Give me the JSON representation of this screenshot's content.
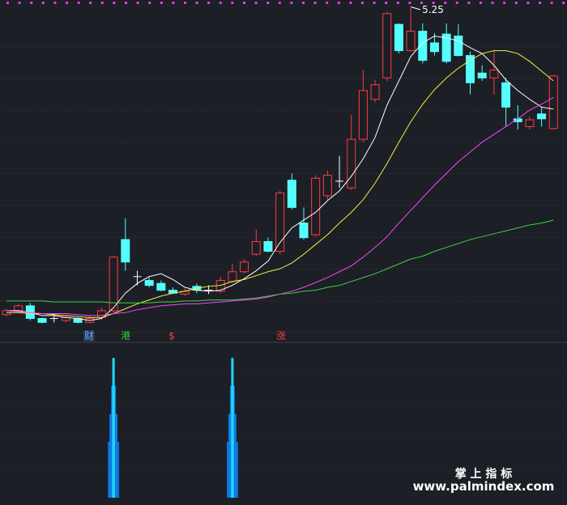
{
  "chart_data": {
    "type": "candlestick",
    "open": [
      2.09,
      2.13,
      2.18,
      2.05,
      2.05,
      2.03,
      2.05,
      2.01,
      2.06,
      2.13,
      2.86,
      2.48,
      2.44,
      2.41,
      2.34,
      2.3,
      2.38,
      2.34,
      2.33,
      2.43,
      2.53,
      2.71,
      2.84,
      2.74,
      3.47,
      3.03,
      2.91,
      3.31,
      3.46,
      3.39,
      3.89,
      4.3,
      4.52,
      5.07,
      4.8,
      5.0,
      4.88,
      4.97,
      4.95,
      4.75,
      4.57,
      4.52,
      4.47,
      4.1,
      4.02,
      4.15,
      4.0
    ],
    "high": [
      2.15,
      2.2,
      2.21,
      2.06,
      2.1,
      2.08,
      2.06,
      2.08,
      2.16,
      2.69,
      3.08,
      2.54,
      2.47,
      2.44,
      2.37,
      2.36,
      2.41,
      2.39,
      2.48,
      2.61,
      2.66,
      2.96,
      2.88,
      3.36,
      3.54,
      3.19,
      3.52,
      3.57,
      3.72,
      4.14,
      4.6,
      4.5,
      5.2,
      5.08,
      5.25,
      5.08,
      4.98,
      5.08,
      5.07,
      4.79,
      4.65,
      4.8,
      4.52,
      4.24,
      4.12,
      4.22,
      4.55
    ],
    "low": [
      2.07,
      2.11,
      2.03,
      2.0,
      2.01,
      2.01,
      2.0,
      2.0,
      2.04,
      2.11,
      2.54,
      2.39,
      2.37,
      2.33,
      2.3,
      2.28,
      2.31,
      2.3,
      2.31,
      2.41,
      2.51,
      2.69,
      2.73,
      2.71,
      3.17,
      2.86,
      2.89,
      3.27,
      3.39,
      3.37,
      3.86,
      4.27,
      4.49,
      4.77,
      4.79,
      4.67,
      4.75,
      4.67,
      4.74,
      4.35,
      4.49,
      4.35,
      4.02,
      3.99,
      3.99,
      4.02,
      3.99
    ],
    "close": [
      2.13,
      2.18,
      2.05,
      2.01,
      2.05,
      2.06,
      2.01,
      2.05,
      2.13,
      2.68,
      2.63,
      2.48,
      2.39,
      2.34,
      2.31,
      2.33,
      2.34,
      2.34,
      2.44,
      2.53,
      2.63,
      2.84,
      2.74,
      3.34,
      3.19,
      2.88,
      3.49,
      3.52,
      3.46,
      3.89,
      4.39,
      4.45,
      5.18,
      4.8,
      5.0,
      4.7,
      4.79,
      4.69,
      4.75,
      4.47,
      4.52,
      4.6,
      4.22,
      4.07,
      4.09,
      4.1,
      4.54
    ],
    "up_color": "#ff3c3c",
    "down_color": "#54ffff",
    "series": [
      {
        "color": "#ffffff",
        "values": [
          2.13,
          2.13,
          2.11,
          2.08,
          2.08,
          2.06,
          2.05,
          2.03,
          2.05,
          2.16,
          2.31,
          2.41,
          2.48,
          2.51,
          2.45,
          2.37,
          2.34,
          2.33,
          2.34,
          2.39,
          2.46,
          2.54,
          2.64,
          2.83,
          2.98,
          3.06,
          3.14,
          3.26,
          3.36,
          3.51,
          3.69,
          3.91,
          4.24,
          4.49,
          4.74,
          4.88,
          4.95,
          4.93,
          4.9,
          4.83,
          4.77,
          4.65,
          4.5,
          4.39,
          4.3,
          4.22,
          4.2
        ]
      },
      {
        "color": "#f0f040",
        "values": [
          2.11,
          2.11,
          2.1,
          2.1,
          2.09,
          2.08,
          2.07,
          2.06,
          2.06,
          2.1,
          2.15,
          2.2,
          2.24,
          2.28,
          2.31,
          2.33,
          2.36,
          2.38,
          2.39,
          2.43,
          2.45,
          2.49,
          2.53,
          2.56,
          2.62,
          2.71,
          2.81,
          2.91,
          3.03,
          3.14,
          3.27,
          3.44,
          3.64,
          3.86,
          4.07,
          4.25,
          4.4,
          4.52,
          4.62,
          4.7,
          4.77,
          4.8,
          4.8,
          4.77,
          4.69,
          4.59,
          4.49
        ]
      },
      {
        "color": "#ff40ff",
        "values": [
          2.13,
          2.12,
          2.11,
          2.1,
          2.1,
          2.1,
          2.09,
          2.08,
          2.08,
          2.1,
          2.11,
          2.14,
          2.16,
          2.18,
          2.19,
          2.2,
          2.2,
          2.21,
          2.22,
          2.23,
          2.24,
          2.25,
          2.27,
          2.3,
          2.33,
          2.37,
          2.42,
          2.47,
          2.53,
          2.59,
          2.68,
          2.78,
          2.89,
          3.03,
          3.16,
          3.29,
          3.42,
          3.54,
          3.66,
          3.76,
          3.86,
          3.94,
          4.02,
          4.1,
          4.19,
          4.25,
          4.32
        ]
      },
      {
        "color": "#40d040",
        "values": [
          2.23,
          2.23,
          2.23,
          2.23,
          2.22,
          2.22,
          2.22,
          2.22,
          2.22,
          2.21,
          2.21,
          2.21,
          2.21,
          2.22,
          2.22,
          2.23,
          2.23,
          2.24,
          2.24,
          2.24,
          2.25,
          2.26,
          2.28,
          2.3,
          2.31,
          2.33,
          2.34,
          2.37,
          2.39,
          2.43,
          2.47,
          2.51,
          2.56,
          2.61,
          2.66,
          2.69,
          2.74,
          2.78,
          2.82,
          2.86,
          2.89,
          2.92,
          2.95,
          2.98,
          3.01,
          3.03,
          3.06
        ]
      }
    ],
    "ylim": [
      1.83,
      5.32
    ],
    "high_label": 5.25,
    "annotations": [
      "财",
      "港",
      "$",
      "涨"
    ],
    "signal": {
      "values": [
        null,
        null,
        null,
        null,
        null,
        null,
        null,
        null,
        null,
        1,
        null,
        null,
        null,
        null,
        null,
        null,
        null,
        null,
        null,
        1,
        null,
        null,
        null,
        null,
        null,
        null,
        null,
        null,
        null,
        null,
        null,
        null,
        null,
        null,
        null,
        null,
        null,
        null,
        null,
        null,
        null,
        null,
        null,
        null,
        null,
        null,
        null
      ],
      "ylim": [
        0,
        1.1
      ],
      "color": "#20d8ff"
    }
  },
  "watermark": {
    "title": "掌 上 指 标",
    "url": "www.palmindex.com"
  }
}
